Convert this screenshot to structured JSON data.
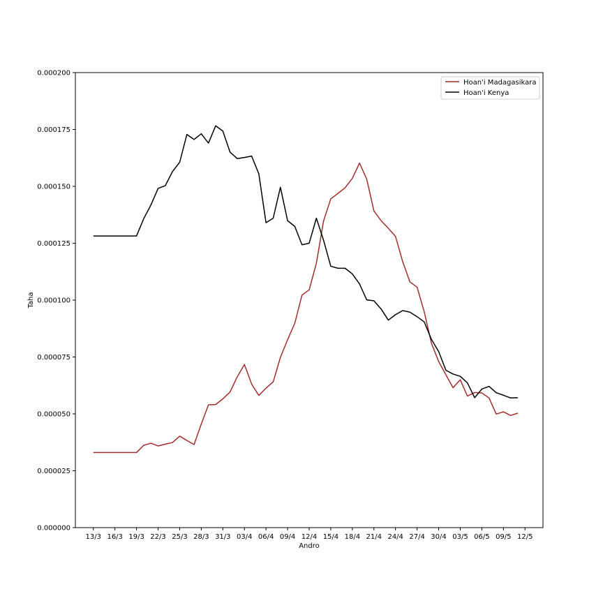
{
  "chart_data": {
    "type": "line",
    "xlabel": "Andro",
    "ylabel": "Taha",
    "ylim": [
      0,
      0.0002
    ],
    "yticks": [
      "0.000000",
      "0.000025",
      "0.000050",
      "0.000075",
      "0.000100",
      "0.000125",
      "0.000150",
      "0.000175",
      "0.000200"
    ],
    "ytick_values": [
      0,
      2.5e-05,
      5e-05,
      7.5e-05,
      0.0001,
      0.000125,
      0.00015,
      0.000175,
      0.0002
    ],
    "xticks": [
      "13/3",
      "16/3",
      "19/3",
      "22/3",
      "25/3",
      "28/3",
      "31/3",
      "03/4",
      "06/4",
      "09/4",
      "12/4",
      "15/4",
      "18/4",
      "21/4",
      "24/4",
      "27/4",
      "30/4",
      "03/5",
      "06/5",
      "09/5",
      "12/5"
    ],
    "xtick_day_index": [
      0,
      3,
      6,
      9,
      12,
      15,
      18,
      21,
      24,
      27,
      30,
      33,
      36,
      39,
      42,
      45,
      48,
      51,
      54,
      57,
      60
    ],
    "x_range": [
      -2.5,
      62.5
    ],
    "legend_position": "top-right",
    "colors": {
      "madagascar": "#a52a2a",
      "kenya": "#000000"
    },
    "series": [
      {
        "name": "Hoan'i Madagasikara",
        "color": "#a52a2a",
        "values": [
          3.3e-05,
          3.3e-05,
          3.3e-05,
          3.3e-05,
          3.3e-05,
          3.3e-05,
          3.3e-05,
          3.62e-05,
          3.71e-05,
          3.59e-05,
          3.67e-05,
          3.74e-05,
          4.02e-05,
          3.83e-05,
          3.65e-05,
          4.55e-05,
          5.4e-05,
          5.41e-05,
          5.66e-05,
          5.96e-05,
          6.63e-05,
          7.17e-05,
          6.31e-05,
          5.81e-05,
          6.13e-05,
          6.41e-05,
          7.48e-05,
          8.26e-05,
          8.98e-05,
          0.0001022,
          0.0001045,
          0.0001162,
          0.0001348,
          0.0001445,
          0.0001469,
          0.0001494,
          0.0001535,
          0.0001602,
          0.0001532,
          0.0001392,
          0.0001349,
          0.0001316,
          0.000128,
          0.0001169,
          0.000108,
          0.0001057,
          9.48e-05,
          8.1e-05,
          7.3e-05,
          6.72e-05,
          6.15e-05,
          6.5e-05,
          5.78e-05,
          5.94e-05,
          5.92e-05,
          5.7e-05,
          4.99e-05,
          5.09e-05,
          4.93e-05,
          5.03e-05
        ]
      },
      {
        "name": "Hoan'i Kenya",
        "color": "#000000",
        "values": [
          0.0001282,
          0.0001282,
          0.0001282,
          0.0001282,
          0.0001282,
          0.0001282,
          0.0001282,
          0.0001358,
          0.0001418,
          0.0001491,
          0.0001503,
          0.0001565,
          0.0001606,
          0.0001728,
          0.0001706,
          0.0001731,
          0.000169,
          0.0001766,
          0.0001743,
          0.000165,
          0.0001622,
          0.0001627,
          0.0001633,
          0.0001555,
          0.000134,
          0.000136,
          0.0001496,
          0.0001349,
          0.0001324,
          0.0001243,
          0.000125,
          0.000136,
          0.0001263,
          0.0001149,
          0.000114,
          0.000114,
          0.0001115,
          0.0001071,
          0.0001001,
          9.97e-05,
          9.61e-05,
          9.12e-05,
          9.36e-05,
          9.54e-05,
          9.47e-05,
          9.27e-05,
          9.04e-05,
          8.27e-05,
          7.74e-05,
          6.92e-05,
          6.75e-05,
          6.65e-05,
          6.36e-05,
          5.71e-05,
          6.09e-05,
          6.21e-05,
          5.93e-05,
          5.82e-05,
          5.7e-05,
          5.71e-05
        ]
      }
    ]
  }
}
